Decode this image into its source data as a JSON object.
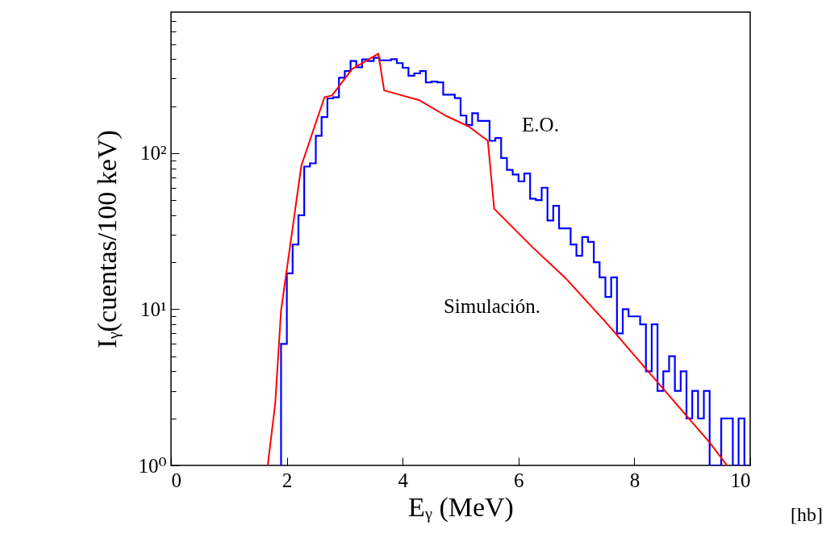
{
  "chart_data": {
    "type": "histogram",
    "xlabel": "Eᵧ (MeV)",
    "ylabel": "Iᵧ(cuentas/100 keV)",
    "bins": [
      1.9,
      2.0,
      2.1,
      2.2,
      2.3,
      2.4,
      2.5,
      2.6,
      2.7,
      2.8,
      2.9,
      3.0,
      3.1,
      3.2,
      3.3,
      3.4,
      3.5,
      3.6,
      3.7,
      3.8,
      3.9,
      4.0,
      4.1,
      4.2,
      4.3,
      4.4,
      4.5,
      4.6,
      4.7,
      4.8,
      4.9,
      5.0,
      5.1,
      5.2,
      5.3,
      5.4,
      5.5,
      5.6,
      5.7,
      5.8,
      5.9,
      6.0,
      6.1,
      6.2,
      6.3,
      6.4,
      6.5,
      6.6,
      6.7,
      6.8,
      6.9,
      7.0,
      7.1,
      7.2,
      7.3,
      7.4,
      7.5,
      7.6,
      7.7,
      7.8,
      7.9,
      8.0,
      8.1,
      8.2,
      8.3,
      8.4,
      8.5,
      8.6,
      8.7,
      8.8,
      8.9,
      9.0,
      9.1,
      9.2,
      9.3,
      9.4,
      9.5,
      9.6,
      9.7,
      9.8,
      9.9,
      10.0
    ],
    "series": [
      {
        "name": "E.O.",
        "color": "#0000ff",
        "values": [
          6,
          17,
          26,
          40,
          82,
          86,
          129,
          170,
          224,
          228,
          304,
          335,
          389,
          355,
          398,
          389,
          408,
          393,
          393,
          400,
          377,
          352,
          313,
          324,
          335,
          284,
          287,
          284,
          237,
          237,
          225,
          174,
          151,
          180,
          161,
          161,
          120,
          125,
          93,
          78,
          73,
          66,
          74,
          51,
          50,
          60,
          37,
          46,
          33,
          33,
          26,
          22,
          29,
          27,
          20,
          16,
          12,
          16,
          7,
          10,
          9,
          9,
          8,
          4,
          8,
          3,
          4,
          5,
          3,
          4,
          2,
          3,
          2,
          3,
          1,
          1,
          2,
          2,
          1,
          2,
          1
        ]
      },
      {
        "name": "Simulación.",
        "type": "line",
        "color": "#ff0000",
        "x": [
          1.67,
          1.8,
          1.9,
          2.25,
          2.65,
          2.78,
          3.13,
          3.58,
          3.68,
          4.29,
          4.75,
          5.13,
          5.47,
          5.58,
          6.24,
          6.8,
          7.49,
          8.19,
          9.3,
          9.6
        ],
        "values": [
          1,
          2.5,
          9.8,
          83,
          228,
          234,
          346,
          433,
          252,
          218,
          173,
          149,
          120,
          44,
          25,
          16,
          8.4,
          4.2,
          1.4,
          1
        ]
      }
    ],
    "xlim": [
      0,
      10
    ],
    "xticks": [
      0,
      2,
      4,
      6,
      8,
      10
    ],
    "ylim": [
      1,
      800
    ],
    "log": true,
    "yticks": [
      {
        "value": 1,
        "label": "10⁰"
      },
      {
        "value": 2,
        "label": null
      },
      {
        "value": 3,
        "label": null
      },
      {
        "value": 4,
        "label": null
      },
      {
        "value": 5,
        "label": null
      },
      {
        "value": 6,
        "label": null
      },
      {
        "value": 7,
        "label": null
      },
      {
        "value": 8,
        "label": null
      },
      {
        "value": 9,
        "label": null
      },
      {
        "value": 10,
        "label": "10¹"
      },
      {
        "value": 20,
        "label": null
      },
      {
        "value": 30,
        "label": null
      },
      {
        "value": 40,
        "label": null
      },
      {
        "value": 50,
        "label": null
      },
      {
        "value": 60,
        "label": null
      },
      {
        "value": 70,
        "label": null
      },
      {
        "value": 80,
        "label": null
      },
      {
        "value": 90,
        "label": null
      },
      {
        "value": 100,
        "label": "10²"
      },
      {
        "value": 200,
        "label": null
      },
      {
        "value": 300,
        "label": null
      },
      {
        "value": 400,
        "label": null
      },
      {
        "value": 500,
        "label": null
      },
      {
        "value": 600,
        "label": null
      },
      {
        "value": 700,
        "label": null
      }
    ],
    "annotations": [
      "[hb]"
    ]
  }
}
